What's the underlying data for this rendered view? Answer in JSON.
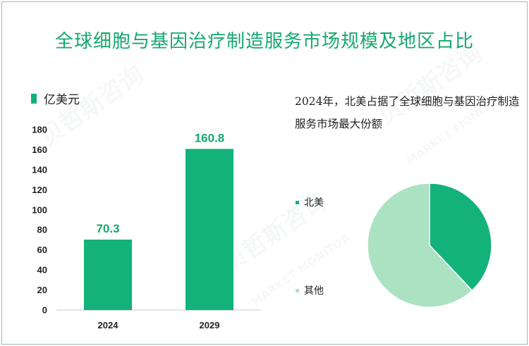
{
  "title": "全球细胞与基因治疗制造服务市场规模及地区占比",
  "watermark": {
    "text_cn": "贝哲斯咨询",
    "text_en": "MARKET MONITOR"
  },
  "colors": {
    "accent": "#15a86e",
    "bar": "#13b27b",
    "pie_primary": "#13b27b",
    "pie_secondary": "#abe2c2"
  },
  "chart_data": [
    {
      "type": "bar",
      "legend": "亿美元",
      "categories": [
        "2024",
        "2029"
      ],
      "values": [
        70.3,
        160.8
      ],
      "data_labels": [
        "70.3",
        "160.8"
      ],
      "ylim": [
        0,
        180
      ],
      "yticks": [
        0,
        20,
        40,
        60,
        80,
        100,
        120,
        140,
        160,
        180
      ],
      "grid": false
    },
    {
      "type": "pie",
      "caption": "2024年，北美占据了全球细胞与基因治疗制造服务市场最大份额",
      "labels": [
        "北美",
        "其他"
      ],
      "values": [
        38,
        62
      ]
    }
  ]
}
